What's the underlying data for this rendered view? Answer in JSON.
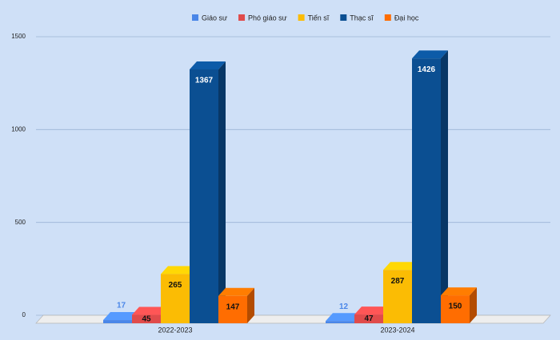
{
  "chart_data": {
    "type": "bar3d",
    "categories": [
      "2022-2023",
      "2023-2024"
    ],
    "series": [
      {
        "name": "Giáo sư",
        "color": "#4a86e8",
        "values": [
          17,
          12
        ]
      },
      {
        "name": "Phó giáo sư",
        "color": "#e04b4b",
        "values": [
          45,
          47
        ]
      },
      {
        "name": "Tiến sĩ",
        "color": "#fbbc04",
        "values": [
          265,
          287
        ]
      },
      {
        "name": "Thạc sĩ",
        "color": "#0b4f92",
        "values": [
          1367,
          1426
        ]
      },
      {
        "name": "Đại học",
        "color": "#ff6d01",
        "values": [
          147,
          150
        ]
      }
    ],
    "ylim": [
      0,
      1500
    ],
    "yticks": [
      0,
      500,
      1000,
      1500
    ],
    "grid": true,
    "legend": "top"
  }
}
